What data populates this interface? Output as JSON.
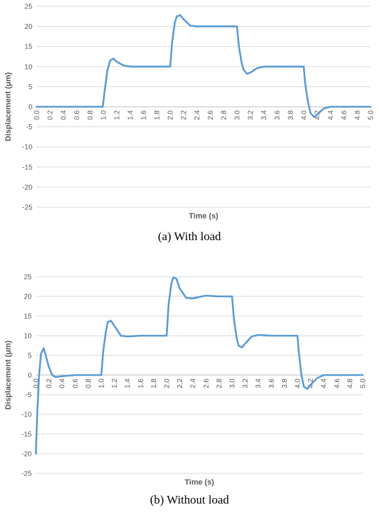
{
  "chart_data": [
    {
      "type": "line",
      "caption": "(a) With load",
      "xlabel": "Time (s)",
      "ylabel": "Displacement (μm)",
      "xlim": [
        0,
        5.0
      ],
      "ylim": [
        -25,
        25
      ],
      "y_ticks": [
        "25",
        "20",
        "15",
        "10",
        "5",
        "0",
        "-5",
        "-10",
        "-15",
        "-20",
        "-25"
      ],
      "x_ticks": [
        "0.0",
        "0.2",
        "0.4",
        "0.6",
        "0.8",
        "1.0",
        "1.2",
        "1.4",
        "1.6",
        "1.8",
        "2.0",
        "2.2",
        "2.4",
        "2.6",
        "2.8",
        "3.0",
        "3.2",
        "3.4",
        "3.6",
        "3.8",
        "4.0",
        "4.2",
        "4.4",
        "4.6",
        "4.8",
        "5.0"
      ],
      "grid": true,
      "color": "#5b9bd5",
      "series": [
        {
          "x": [
            0,
            0.5,
            0.99,
            1.02,
            1.06,
            1.1,
            1.15,
            1.2,
            1.3,
            1.4,
            1.6,
            1.8,
            2.0,
            2.03,
            2.07,
            2.1,
            2.15,
            2.2,
            2.3,
            2.4,
            2.6,
            2.8,
            3.0,
            3.03,
            3.07,
            3.1,
            3.15,
            3.2,
            3.3,
            3.4,
            3.6,
            3.8,
            4.0,
            4.02,
            4.06,
            4.1,
            4.15,
            4.2,
            4.3,
            4.4,
            4.6,
            4.8,
            5.0
          ],
          "y": [
            0,
            0,
            0,
            4,
            9,
            11.5,
            12,
            11.2,
            10.3,
            10,
            10,
            10,
            10,
            16,
            21,
            22.5,
            22.8,
            21.8,
            20.2,
            20,
            20,
            20,
            20,
            15,
            11,
            9.2,
            8.2,
            8.5,
            9.6,
            10,
            10,
            10,
            10,
            6,
            1.5,
            -1.5,
            -2.5,
            -2,
            -0.4,
            0,
            0,
            0,
            0
          ]
        }
      ]
    },
    {
      "type": "line",
      "caption": "(b) Without load",
      "xlabel": "Time (s)",
      "ylabel": "Displacement (μm)",
      "xlim": [
        0,
        5.0
      ],
      "ylim": [
        -25,
        25
      ],
      "y_ticks": [
        "25",
        "20",
        "15",
        "10",
        "5",
        "0",
        "-5",
        "-10",
        "-15",
        "-20",
        "-25"
      ],
      "x_ticks": [
        "0.0",
        "0.2",
        "0.4",
        "0.6",
        "0.8",
        "1.0",
        "1.2",
        "1.4",
        "1.6",
        "1.8",
        "2.0",
        "2.2",
        "2.4",
        "2.6",
        "2.8",
        "3.0",
        "3.2",
        "3.4",
        "3.6",
        "3.8",
        "4.0",
        "4.2",
        "4.4",
        "4.6",
        "4.8",
        "5.0"
      ],
      "grid": true,
      "color": "#5b9bd5",
      "series": [
        {
          "x": [
            0,
            0.02,
            0.05,
            0.08,
            0.12,
            0.15,
            0.2,
            0.25,
            0.3,
            0.4,
            0.6,
            0.8,
            1.0,
            1.03,
            1.07,
            1.1,
            1.15,
            1.2,
            1.3,
            1.4,
            1.6,
            1.8,
            2.0,
            2.03,
            2.07,
            2.1,
            2.15,
            2.2,
            2.3,
            2.4,
            2.6,
            2.8,
            3.0,
            3.03,
            3.07,
            3.1,
            3.15,
            3.2,
            3.3,
            3.4,
            3.6,
            3.8,
            4.0,
            4.02,
            4.06,
            4.1,
            4.15,
            4.2,
            4.3,
            4.4,
            4.6,
            4.8,
            5.0
          ],
          "y": [
            -20,
            -10,
            0,
            5.5,
            6.8,
            5,
            2,
            0,
            -0.5,
            -0.3,
            0,
            0,
            0,
            6,
            11,
            13.5,
            13.8,
            12.5,
            10,
            9.8,
            10,
            10,
            10,
            18,
            23,
            24.8,
            24.5,
            22,
            19.6,
            19.5,
            20.2,
            20,
            20,
            14,
            9.5,
            7.5,
            7,
            8,
            9.8,
            10.2,
            10,
            10,
            10,
            6,
            0,
            -3,
            -3.5,
            -2.5,
            -0.8,
            0,
            0,
            0,
            0
          ]
        }
      ]
    }
  ]
}
